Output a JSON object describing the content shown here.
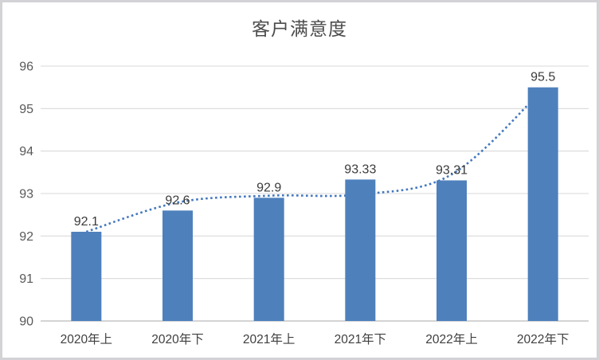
{
  "chart_data": {
    "type": "bar",
    "title": "客户满意度",
    "categories": [
      "2020年上",
      "2020年下",
      "2021年上",
      "2021年下",
      "2022年上",
      "2022年下"
    ],
    "values": [
      92.1,
      92.6,
      92.9,
      93.33,
      93.31,
      95.5
    ],
    "value_labels": [
      "92.1",
      "92.6",
      "92.9",
      "93.33",
      "93.31",
      "95.5"
    ],
    "yticks": [
      96,
      95,
      94,
      93,
      92,
      91,
      90
    ],
    "ylim": [
      90,
      96
    ],
    "xlabel": "",
    "ylabel": "",
    "grid": true,
    "legend": "none",
    "trendline": {
      "style": "dotted",
      "values": [
        92.1,
        92.79,
        92.95,
        92.98,
        93.45,
        95.45
      ]
    },
    "colors": {
      "bar": "#4e80bc",
      "trend": "#4377be",
      "gridline": "#d9d9d9",
      "axis_line": "#c6c6c6",
      "ytick_text": "#595959",
      "xtick_text": "#3f3f3f",
      "value_label_text": "#3a3a3a",
      "title_text": "#4c4c4c",
      "background": "#ffffff",
      "frame_border": "#d3d3d6"
    }
  }
}
